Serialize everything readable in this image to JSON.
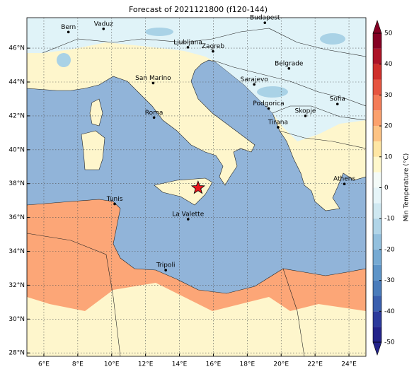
{
  "title": "Forecast of 2021121800 (f120-144)",
  "map": {
    "xlim": [
      5,
      25
    ],
    "ylim": [
      27.8,
      47.8
    ],
    "xticks": [
      {
        "value": 6,
        "label": "6°E"
      },
      {
        "value": 8,
        "label": "8°E"
      },
      {
        "value": 10,
        "label": "10°E"
      },
      {
        "value": 12,
        "label": "12°E"
      },
      {
        "value": 14,
        "label": "14°E"
      },
      {
        "value": 16,
        "label": "16°E"
      },
      {
        "value": 18,
        "label": "18°E"
      },
      {
        "value": 20,
        "label": "20°E"
      },
      {
        "value": 22,
        "label": "22°E"
      },
      {
        "value": 24,
        "label": "24°E"
      }
    ],
    "yticks": [
      {
        "value": 28,
        "label": "28°N"
      },
      {
        "value": 30,
        "label": "30°N"
      },
      {
        "value": 32,
        "label": "32°N"
      },
      {
        "value": 34,
        "label": "34°N"
      },
      {
        "value": 36,
        "label": "36°N"
      },
      {
        "value": 38,
        "label": "38°N"
      },
      {
        "value": 40,
        "label": "40°N"
      },
      {
        "value": 42,
        "label": "42°N"
      },
      {
        "value": 44,
        "label": "44°N"
      },
      {
        "value": 46,
        "label": "46°N"
      }
    ],
    "grid": true,
    "cities": [
      {
        "name": "Bern",
        "lon": 7.45,
        "lat": 46.95
      },
      {
        "name": "Vaduz",
        "lon": 9.52,
        "lat": 47.14
      },
      {
        "name": "Budapest",
        "lon": 19.04,
        "lat": 47.5
      },
      {
        "name": "Ljubljana",
        "lon": 14.5,
        "lat": 46.05
      },
      {
        "name": "Zagreb",
        "lon": 15.98,
        "lat": 45.81
      },
      {
        "name": "Belgrade",
        "lon": 20.46,
        "lat": 44.8
      },
      {
        "name": "San Marino",
        "lon": 12.45,
        "lat": 43.94
      },
      {
        "name": "Sarajevo",
        "lon": 18.41,
        "lat": 43.86
      },
      {
        "name": "Sofia",
        "lon": 23.32,
        "lat": 42.7
      },
      {
        "name": "Roma",
        "lon": 12.5,
        "lat": 41.9
      },
      {
        "name": "Podgorica",
        "lon": 19.26,
        "lat": 42.44
      },
      {
        "name": "Skopje",
        "lon": 21.43,
        "lat": 42.0
      },
      {
        "name": "Tirana",
        "lon": 19.82,
        "lat": 41.33
      },
      {
        "name": "Athens",
        "lon": 23.73,
        "lat": 37.98
      },
      {
        "name": "Tunis",
        "lon": 10.18,
        "lat": 36.8
      },
      {
        "name": "La Valette",
        "lon": 14.51,
        "lat": 35.9
      },
      {
        "name": "Tripoli",
        "lon": 13.19,
        "lat": 32.89
      }
    ],
    "marker": {
      "lon": 15.1,
      "lat": 37.75,
      "color": "#e8141b"
    }
  },
  "colorbar": {
    "label": "Min Temperature (°C)",
    "lim": [
      -50,
      50
    ],
    "ticks": [
      -50,
      -40,
      -30,
      -20,
      -10,
      0,
      10,
      20,
      30,
      40,
      50
    ],
    "levels": [
      -50,
      -45,
      -40,
      -35,
      -30,
      -25,
      -20,
      -15,
      -10,
      -5,
      0,
      5,
      10,
      15,
      20,
      25,
      30,
      35,
      40,
      45,
      50
    ],
    "colors": [
      "#23238a",
      "#2c3a9c",
      "#3a5fae",
      "#4a7cbb",
      "#5d94c8",
      "#76aad3",
      "#93c0de",
      "#b1d5e8",
      "#cfe8f1",
      "#e6f5f9",
      "#f4fbf8",
      "#fff8cc",
      "#fee6a4",
      "#fdc384",
      "#fba16d",
      "#f47c58",
      "#e65540",
      "#cf2f2b",
      "#ac1327",
      "#850023"
    ]
  }
}
